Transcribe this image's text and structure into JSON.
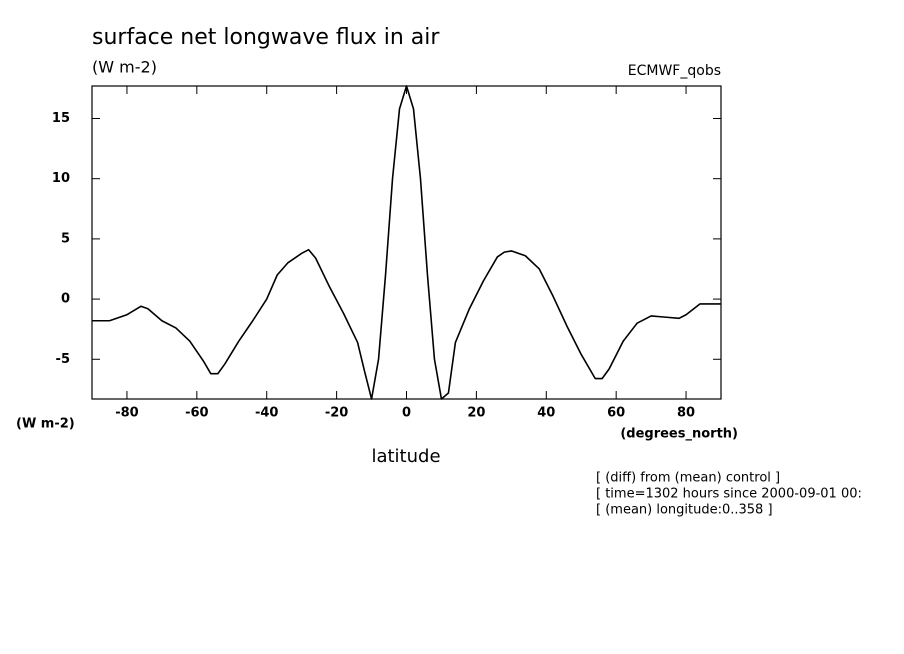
{
  "chart_data": {
    "type": "line",
    "title": "surface net longwave flux in air",
    "subtitle": "(W m-2)",
    "dataset": "ECMWF_qobs",
    "y_unit_label": "(W m-2)",
    "x_unit_label": "(degrees_north)",
    "xlabel": "latitude",
    "notes": [
      "[ (diff) from (mean) control ]",
      "[ time=1302 hours since 2000-09-01 00:",
      "[ (mean) longitude:0..358 ]"
    ],
    "color": "#000000",
    "x": [
      -90,
      -85,
      -80,
      -76,
      -74,
      -70,
      -66,
      -62,
      -58,
      -56,
      -54,
      -52,
      -48,
      -44,
      -40,
      -37,
      -34,
      -30,
      -28,
      -26,
      -22,
      -18,
      -14,
      -12,
      -10,
      -8,
      -6,
      -4,
      -2,
      0,
      2,
      4,
      6,
      8,
      10,
      12,
      14,
      18,
      22,
      26,
      28,
      30,
      34,
      38,
      42,
      46,
      50,
      54,
      56,
      58,
      62,
      66,
      70,
      74,
      78,
      80,
      84,
      90
    ],
    "values": [
      -1.8,
      -1.8,
      -1.3,
      -0.6,
      -0.8,
      -1.8,
      -2.4,
      -3.5,
      -5.2,
      -6.2,
      -6.2,
      -5.4,
      -3.5,
      -1.8,
      0,
      2.0,
      3.0,
      3.8,
      4.1,
      3.4,
      1.0,
      -1.2,
      -3.6,
      -6.0,
      -8.3,
      -5.0,
      2.0,
      10.0,
      15.8,
      17.7,
      15.8,
      10.0,
      2.0,
      -5.0,
      -8.3,
      -7.8,
      -3.6,
      -0.8,
      1.5,
      3.5,
      3.9,
      4.0,
      3.6,
      2.5,
      0.2,
      -2.3,
      -4.6,
      -6.6,
      -6.6,
      -5.8,
      -3.5,
      -2.0,
      -1.4,
      -1.5,
      -1.6,
      -1.3,
      -0.4,
      -0.4
    ],
    "xlim": [
      -90,
      90
    ],
    "ylim": [
      -8.3,
      17.7
    ],
    "xticks": [
      -80,
      -60,
      -40,
      -20,
      0,
      20,
      40,
      60,
      80
    ],
    "yticks": [
      -5,
      0,
      5,
      10,
      15
    ]
  }
}
